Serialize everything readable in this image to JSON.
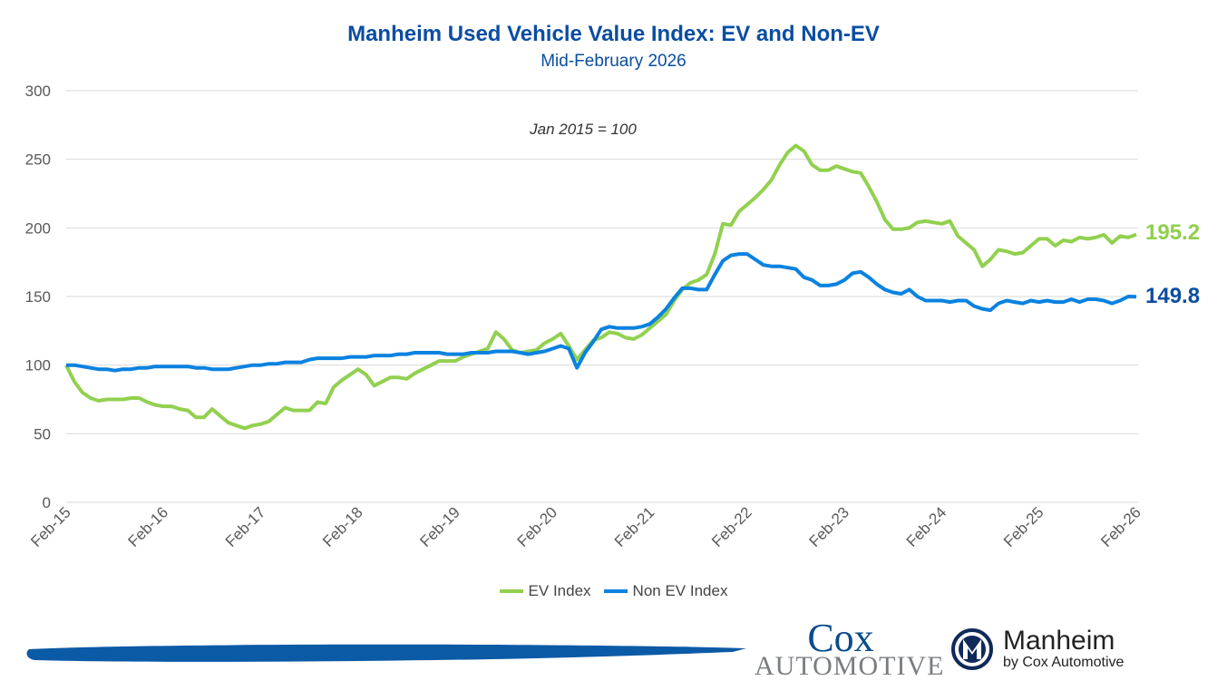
{
  "title": "Manheim Used Vehicle Value Index: EV and Non-EV",
  "subtitle": "Mid-February 2026",
  "legend": {
    "ev": "EV Index",
    "nonev": "Non EV Index"
  },
  "logos": {
    "cox_top": "Cox",
    "cox_bottom": "AUTOMOTIVE",
    "manheim": "Manheim",
    "manheim_sub": "by Cox Automotive"
  },
  "colors": {
    "ev": "#92d050",
    "nonev": "#0a82e0",
    "ev_label": "#8fcf4c",
    "nonev_label": "#0a4da2",
    "title": "#0a4da2"
  },
  "chart_data": {
    "type": "line",
    "title": "Manheim Used Vehicle Value Index: EV and Non-EV",
    "subtitle": "Mid-February 2026",
    "annotation": "Jan 2015 = 100",
    "x_start": "Feb-15",
    "x_end": "Feb-26",
    "x_frequency": "monthly",
    "x_tick_labels": [
      "Feb-15",
      "Feb-16",
      "Feb-17",
      "Feb-18",
      "Feb-19",
      "Feb-20",
      "Feb-21",
      "Feb-22",
      "Feb-23",
      "Feb-24",
      "Feb-25",
      "Feb-26"
    ],
    "y_ticks": [
      0,
      50,
      100,
      150,
      200,
      250,
      300
    ],
    "ylim": [
      0,
      300
    ],
    "grid": true,
    "legend_position": "bottom",
    "end_labels": {
      "ev": "195.2",
      "nonev": "149.8"
    },
    "series": [
      {
        "name": "EV Index",
        "color": "#92d050",
        "values": [
          100,
          88,
          80,
          76,
          74,
          75,
          75,
          75,
          76,
          76,
          73,
          71,
          70,
          70,
          68,
          67,
          62,
          62,
          68,
          63,
          58,
          56,
          54,
          56,
          57,
          59,
          64,
          69,
          67,
          67,
          67,
          73,
          72,
          84,
          89,
          93,
          97,
          93,
          85,
          88,
          91,
          91,
          90,
          94,
          97,
          100,
          103,
          103,
          103,
          106,
          108,
          110,
          112,
          124,
          119,
          111,
          109,
          110,
          111,
          116,
          119,
          123,
          114,
          104,
          111,
          118,
          120,
          124,
          123,
          120,
          119,
          122,
          127,
          132,
          137,
          147,
          155,
          160,
          162,
          166,
          181,
          203,
          202,
          212,
          217,
          222,
          228,
          235,
          246,
          255,
          260,
          256,
          246,
          242,
          242,
          245,
          243,
          241,
          240,
          230,
          219,
          206,
          199,
          199,
          200,
          204,
          205,
          204,
          203,
          205,
          194,
          189,
          184,
          172,
          177,
          184,
          183,
          181,
          182,
          187,
          192,
          192,
          187,
          191,
          190,
          193,
          192,
          193,
          195,
          189,
          194,
          193,
          195.2
        ]
      },
      {
        "name": "Non EV Index",
        "color": "#0a82e0",
        "values": [
          100,
          100,
          99,
          98,
          97,
          97,
          96,
          97,
          97,
          98,
          98,
          99,
          99,
          99,
          99,
          99,
          98,
          98,
          97,
          97,
          97,
          98,
          99,
          100,
          100,
          101,
          101,
          102,
          102,
          102,
          104,
          105,
          105,
          105,
          105,
          106,
          106,
          106,
          107,
          107,
          107,
          108,
          108,
          109,
          109,
          109,
          109,
          108,
          108,
          108,
          109,
          109,
          109,
          110,
          110,
          110,
          109,
          108,
          109,
          110,
          112,
          114,
          112,
          98,
          109,
          117,
          126,
          128,
          127,
          127,
          127,
          128,
          130,
          135,
          141,
          149,
          156,
          156,
          155,
          155,
          166,
          176,
          180,
          181,
          181,
          177,
          173,
          172,
          172,
          171,
          170,
          164,
          162,
          158,
          158,
          159,
          162,
          167,
          168,
          164,
          159,
          155,
          153,
          152,
          155,
          150,
          147,
          147,
          147,
          146,
          147,
          147,
          143,
          141,
          140,
          145,
          147,
          146,
          145,
          147,
          146,
          147,
          146,
          146,
          148,
          146,
          148,
          148,
          147,
          145,
          147,
          150,
          149.8
        ]
      }
    ]
  }
}
